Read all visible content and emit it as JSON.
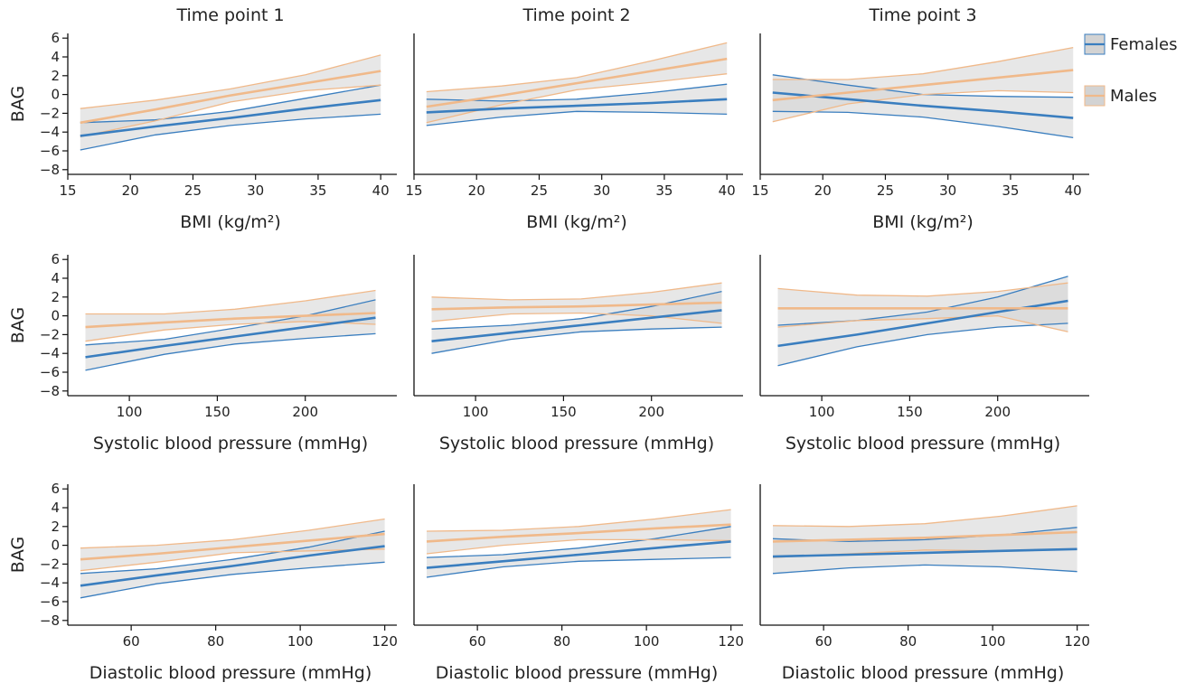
{
  "legend": {
    "position": "right",
    "entries": [
      {
        "label": "Females",
        "color": "#3a7ebf"
      },
      {
        "label": "Males",
        "color": "#f0b98a"
      }
    ]
  },
  "colors": {
    "females": "#3a7ebf",
    "males": "#f0b98a",
    "ci_fill": "#d3d3d3"
  },
  "chart_data": [
    {
      "type": "line",
      "title": "Time point 1",
      "xlabel": "BMI (kg/m²)",
      "ylabel": "BAG",
      "xlim": [
        15,
        41
      ],
      "ylim": [
        -8.5,
        6.5
      ],
      "xticks": [
        15,
        20,
        25,
        30,
        35,
        40
      ],
      "yticks": [
        -8,
        -6,
        -4,
        -2,
        0,
        2,
        4,
        6
      ],
      "x": [
        16,
        22,
        28,
        34,
        40
      ],
      "series": [
        {
          "name": "Females",
          "fit": [
            -4.4,
            -3.4,
            -2.5,
            -1.5,
            -0.6
          ],
          "lower": [
            -5.9,
            -4.3,
            -3.3,
            -2.6,
            -2.1
          ],
          "upper": [
            -3.0,
            -2.7,
            -1.8,
            -0.4,
            1.0
          ]
        },
        {
          "name": "Males",
          "fit": [
            -3.0,
            -1.6,
            -0.1,
            1.2,
            2.5
          ],
          "lower": [
            -4.5,
            -2.8,
            -0.8,
            0.4,
            1.0
          ],
          "upper": [
            -1.5,
            -0.6,
            0.6,
            2.1,
            4.2
          ]
        }
      ]
    },
    {
      "type": "line",
      "title": "Time point 2",
      "xlabel": "BMI (kg/m²)",
      "ylabel": "",
      "xlim": [
        15,
        41
      ],
      "ylim": [
        -8.5,
        6.5
      ],
      "xticks": [
        15,
        20,
        25,
        30,
        35,
        40
      ],
      "yticks": [],
      "x": [
        16,
        22,
        28,
        34,
        40
      ],
      "series": [
        {
          "name": "Females",
          "fit": [
            -1.9,
            -1.5,
            -1.2,
            -0.9,
            -0.5
          ],
          "lower": [
            -3.3,
            -2.4,
            -1.8,
            -1.9,
            -2.1
          ],
          "upper": [
            -0.5,
            -0.7,
            -0.5,
            0.2,
            1.1
          ]
        },
        {
          "name": "Males",
          "fit": [
            -1.3,
            -0.1,
            1.2,
            2.5,
            3.8
          ],
          "lower": [
            -3.0,
            -1.1,
            0.5,
            1.3,
            2.2
          ],
          "upper": [
            0.3,
            0.9,
            1.8,
            3.6,
            5.5
          ]
        }
      ]
    },
    {
      "type": "line",
      "title": "Time point 3",
      "xlabel": "BMI (kg/m²)",
      "ylabel": "",
      "xlim": [
        15,
        41
      ],
      "ylim": [
        -8.5,
        6.5
      ],
      "xticks": [
        15,
        20,
        25,
        30,
        35,
        40
      ],
      "yticks": [],
      "x": [
        16,
        22,
        28,
        34,
        40
      ],
      "series": [
        {
          "name": "Females",
          "fit": [
            0.2,
            -0.5,
            -1.2,
            -1.8,
            -2.5
          ],
          "lower": [
            -1.8,
            -1.9,
            -2.4,
            -3.4,
            -4.6
          ],
          "upper": [
            2.1,
            1.0,
            0.0,
            -0.2,
            -0.3
          ]
        },
        {
          "name": "Males",
          "fit": [
            -0.6,
            0.2,
            1.0,
            1.8,
            2.6
          ],
          "lower": [
            -2.9,
            -1.0,
            0.0,
            0.4,
            0.2
          ],
          "upper": [
            1.6,
            1.6,
            2.2,
            3.5,
            5.0
          ]
        }
      ]
    },
    {
      "type": "line",
      "title": "",
      "xlabel": "Systolic blood pressure (mmHg)",
      "ylabel": "BAG",
      "xlim": [
        65,
        250
      ],
      "ylim": [
        -8.5,
        6.5
      ],
      "xticks": [
        100,
        150,
        200
      ],
      "yticks": [
        -8,
        -6,
        -4,
        -2,
        0,
        2,
        4,
        6
      ],
      "x": [
        75,
        120,
        160,
        200,
        240
      ],
      "series": [
        {
          "name": "Females",
          "fit": [
            -4.4,
            -3.2,
            -2.2,
            -1.2,
            -0.2
          ],
          "lower": [
            -5.8,
            -4.1,
            -3.0,
            -2.4,
            -1.9
          ],
          "upper": [
            -3.1,
            -2.5,
            -1.3,
            0.0,
            1.7
          ]
        },
        {
          "name": "Males",
          "fit": [
            -1.2,
            -0.7,
            -0.3,
            0.0,
            0.3
          ],
          "lower": [
            -2.7,
            -1.5,
            -0.9,
            -0.6,
            -0.9
          ],
          "upper": [
            0.2,
            0.2,
            0.7,
            1.6,
            2.7
          ]
        }
      ]
    },
    {
      "type": "line",
      "title": "",
      "xlabel": "Systolic blood pressure (mmHg)",
      "ylabel": "",
      "xlim": [
        65,
        250
      ],
      "ylim": [
        -8.5,
        6.5
      ],
      "xticks": [
        100,
        150,
        200
      ],
      "yticks": [],
      "x": [
        75,
        120,
        160,
        200,
        240
      ],
      "series": [
        {
          "name": "Females",
          "fit": [
            -2.7,
            -1.8,
            -1.0,
            -0.2,
            0.6
          ],
          "lower": [
            -4.0,
            -2.5,
            -1.7,
            -1.4,
            -1.2
          ],
          "upper": [
            -1.4,
            -1.0,
            -0.3,
            1.0,
            2.6
          ]
        },
        {
          "name": "Males",
          "fit": [
            0.7,
            0.9,
            1.0,
            1.2,
            1.4
          ],
          "lower": [
            -0.6,
            0.2,
            0.3,
            0.0,
            -0.8
          ],
          "upper": [
            2.0,
            1.7,
            1.8,
            2.5,
            3.5
          ]
        }
      ]
    },
    {
      "type": "line",
      "title": "",
      "xlabel": "Systolic blood pressure (mmHg)",
      "ylabel": "",
      "xlim": [
        65,
        250
      ],
      "ylim": [
        -8.5,
        6.5
      ],
      "xticks": [
        100,
        150,
        200
      ],
      "yticks": [],
      "x": [
        75,
        120,
        160,
        200,
        240
      ],
      "series": [
        {
          "name": "Females",
          "fit": [
            -3.2,
            -2.0,
            -0.8,
            0.4,
            1.6
          ],
          "lower": [
            -5.3,
            -3.3,
            -2.0,
            -1.2,
            -0.8
          ],
          "upper": [
            -1.0,
            -0.5,
            0.4,
            2.0,
            4.2
          ]
        },
        {
          "name": "Males",
          "fit": [
            0.8,
            0.8,
            0.8,
            0.8,
            0.8
          ],
          "lower": [
            -1.2,
            -0.5,
            -0.3,
            0.0,
            -1.7
          ],
          "upper": [
            2.9,
            2.2,
            2.1,
            2.6,
            3.5
          ]
        }
      ]
    },
    {
      "type": "line",
      "title": "",
      "xlabel": "Diastolic blood pressure (mmHg)",
      "ylabel": "BAG",
      "xlim": [
        45,
        122
      ],
      "ylim": [
        -8.5,
        6.5
      ],
      "xticks": [
        60,
        80,
        100,
        120
      ],
      "yticks": [
        -8,
        -6,
        -4,
        -2,
        0,
        2,
        4,
        6
      ],
      "x": [
        48,
        66,
        84,
        102,
        120
      ],
      "series": [
        {
          "name": "Females",
          "fit": [
            -4.3,
            -3.2,
            -2.2,
            -1.1,
            -0.1
          ],
          "lower": [
            -5.6,
            -4.1,
            -3.1,
            -2.4,
            -1.8
          ],
          "upper": [
            -3.0,
            -2.5,
            -1.5,
            -0.2,
            1.5
          ]
        },
        {
          "name": "Males",
          "fit": [
            -1.5,
            -0.9,
            -0.2,
            0.5,
            1.2
          ],
          "lower": [
            -2.7,
            -1.8,
            -0.8,
            -0.6,
            -0.4
          ],
          "upper": [
            -0.3,
            0.0,
            0.6,
            1.6,
            2.8
          ]
        }
      ]
    },
    {
      "type": "line",
      "title": "",
      "xlabel": "Diastolic blood pressure (mmHg)",
      "ylabel": "",
      "xlim": [
        45,
        122
      ],
      "ylim": [
        -8.5,
        6.5
      ],
      "xticks": [
        60,
        80,
        100,
        120
      ],
      "yticks": [],
      "x": [
        48,
        66,
        84,
        102,
        120
      ],
      "series": [
        {
          "name": "Females",
          "fit": [
            -2.4,
            -1.7,
            -1.0,
            -0.3,
            0.4
          ],
          "lower": [
            -3.4,
            -2.3,
            -1.7,
            -1.5,
            -1.3
          ],
          "upper": [
            -1.3,
            -1.0,
            -0.3,
            0.7,
            2.0
          ]
        },
        {
          "name": "Males",
          "fit": [
            0.4,
            0.9,
            1.3,
            1.8,
            2.2
          ],
          "lower": [
            -0.9,
            0.0,
            0.6,
            0.6,
            0.5
          ],
          "upper": [
            1.5,
            1.6,
            2.0,
            2.8,
            3.8
          ]
        }
      ]
    },
    {
      "type": "line",
      "title": "",
      "xlabel": "Diastolic blood pressure (mmHg)",
      "ylabel": "",
      "xlim": [
        45,
        122
      ],
      "ylim": [
        -8.5,
        6.5
      ],
      "xticks": [
        60,
        80,
        100,
        120
      ],
      "yticks": [],
      "x": [
        48,
        66,
        84,
        102,
        120
      ],
      "series": [
        {
          "name": "Females",
          "fit": [
            -1.2,
            -1.0,
            -0.8,
            -0.6,
            -0.4
          ],
          "lower": [
            -3.0,
            -2.4,
            -2.1,
            -2.3,
            -2.8
          ],
          "upper": [
            0.7,
            0.4,
            0.6,
            1.1,
            1.9
          ]
        },
        {
          "name": "Males",
          "fit": [
            0.4,
            0.6,
            0.8,
            1.1,
            1.4
          ],
          "lower": [
            -1.3,
            -0.9,
            -0.5,
            -0.6,
            -0.4
          ],
          "upper": [
            2.1,
            2.0,
            2.3,
            3.1,
            4.2
          ]
        }
      ]
    }
  ]
}
